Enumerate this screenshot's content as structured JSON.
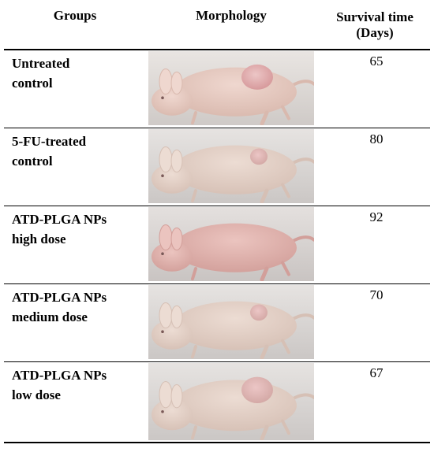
{
  "header": {
    "groups": "Groups",
    "morphology": "Morphology",
    "survival_line1": "Survival time",
    "survival_line2": "(Days)"
  },
  "rows": [
    {
      "group_line1": "Untreated",
      "group_line2": "control",
      "survival": "65",
      "tumor": "large",
      "tone": "pink"
    },
    {
      "group_line1": "5-FU-treated",
      "group_line2": "control",
      "survival": "80",
      "tumor": "small",
      "tone": "pale"
    },
    {
      "group_line1": "ATD-PLGA NPs",
      "group_line2": "high dose",
      "survival": "92",
      "tumor": "none",
      "tone": "rose"
    },
    {
      "group_line1": "ATD-PLGA NPs",
      "group_line2": "medium dose",
      "survival": "70",
      "tumor": "small",
      "tone": "pale"
    },
    {
      "group_line1": "ATD-PLGA NPs",
      "group_line2": "low dose",
      "survival": "67",
      "tumor": "large",
      "tone": "pale"
    }
  ]
}
